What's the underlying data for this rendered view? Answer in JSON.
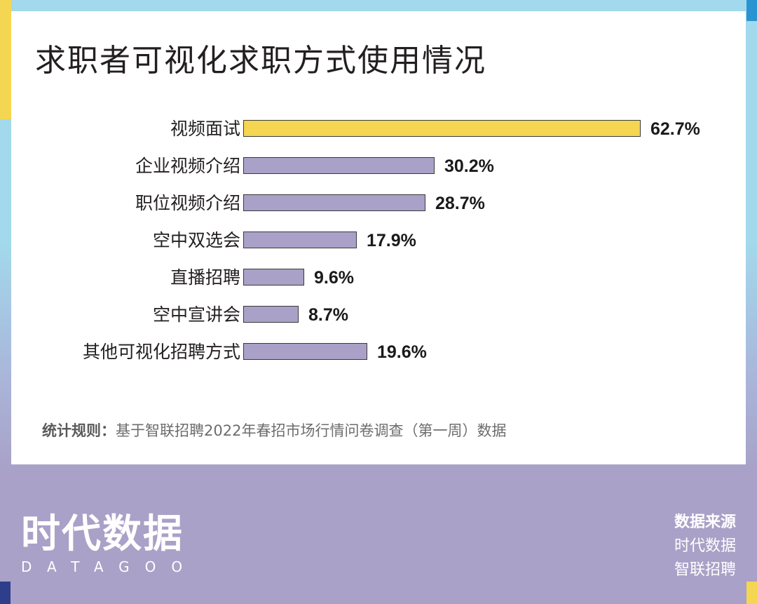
{
  "title": "求职者可视化求职方式使用情况",
  "colors": {
    "highlight_bar": "#f4d652",
    "default_bar": "#a9a1c7",
    "frame_blue": "#a3d9ec",
    "frame_lavender": "#a9a1c7",
    "corner_blue": "#2a93d2",
    "corner_navy": "#2f3e8a",
    "corner_yellow": "#f4d652"
  },
  "chart_data": {
    "type": "bar",
    "orientation": "horizontal",
    "title": "求职者可视化求职方式使用情况",
    "categories": [
      "视频面试",
      "企业视频介绍",
      "职位视频介绍",
      "空中双选会",
      "直播招聘",
      "空中宣讲会",
      "其他可视化招聘方式"
    ],
    "values": [
      62.7,
      30.2,
      28.7,
      17.9,
      9.6,
      8.7,
      19.6
    ],
    "value_labels": [
      "62.7%",
      "30.2%",
      "28.7%",
      "17.9%",
      "9.6%",
      "8.7%",
      "19.6%"
    ],
    "unit": "%",
    "highlight_index": 0,
    "xlabel": "",
    "ylabel": "",
    "grid": false,
    "legend": null
  },
  "note": {
    "label": "统计规则：",
    "text": "基于智联招聘2022年春招市场行情问卷调查（第一周）数据"
  },
  "logo": {
    "cn": "时代数据",
    "en": "DATAGOO"
  },
  "source": {
    "title": "数据来源",
    "lines": [
      "时代数据",
      "智联招聘"
    ]
  }
}
